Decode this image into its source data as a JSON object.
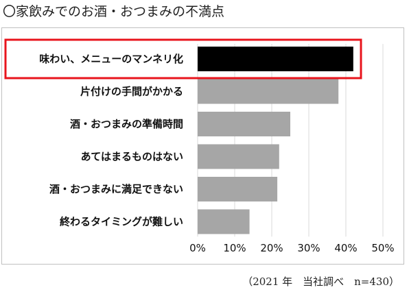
{
  "title": "〇家飲みでのお酒・おつまみの不満点",
  "source_note": "（2021 年　当社調べ　n=430）",
  "colors": {
    "highlight_bar": "#000000",
    "bar": "#a6a6a6",
    "highlight_box": "#e8141c",
    "gridline": "#d9d9d9"
  },
  "chart_data": {
    "type": "bar",
    "orientation": "horizontal",
    "title": "〇家飲みでのお酒・おつまみの不満点",
    "categories": [
      "味わい、メニューのマンネリ化",
      "片付けの手間がかかる",
      "酒・おつまみの準備時間",
      "あてはまるものはない",
      "酒・おつまみに満足できない",
      "終わるタイミングが難しい"
    ],
    "values": [
      42,
      38,
      25,
      22,
      21.5,
      14
    ],
    "highlight_index": 0,
    "xlim": [
      0,
      50
    ],
    "xticks": [
      0,
      10,
      20,
      30,
      40,
      50
    ],
    "tick_labels": [
      "0%",
      "10%",
      "20%",
      "30%",
      "40%",
      "50%"
    ],
    "unit": "%",
    "grid": true,
    "legend": "none"
  }
}
